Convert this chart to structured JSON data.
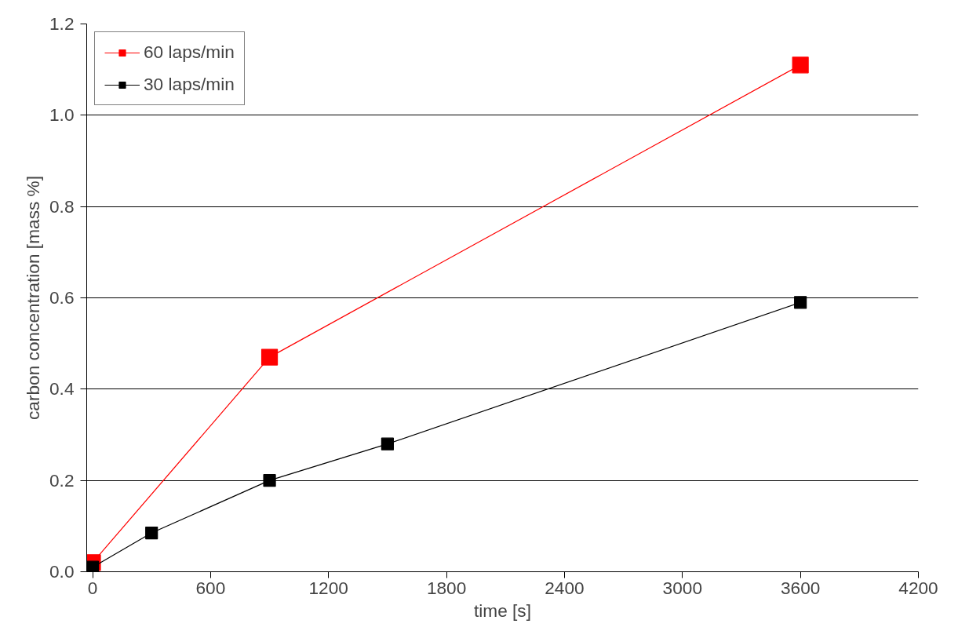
{
  "chart_data": {
    "type": "line",
    "xlabel": "time [s]",
    "ylabel": "carbon concentration [mass %]",
    "xlim": [
      -30,
      4200
    ],
    "xticks": [
      0,
      600,
      1200,
      1800,
      2400,
      3000,
      3600,
      4200
    ],
    "ylim": [
      0,
      1.2
    ],
    "yticks": [
      {
        "value": 0,
        "label": "0.0"
      },
      {
        "value": 0.2,
        "label": "0.2"
      },
      {
        "value": 0.4,
        "label": "0.4"
      },
      {
        "value": 0.6,
        "label": "0.6"
      },
      {
        "value": 0.8,
        "label": "0.8"
      },
      {
        "value": 1,
        "label": "1.0"
      },
      {
        "value": 1.2,
        "label": "1.2"
      }
    ],
    "grid": "y",
    "legend": "top left",
    "marker": "square",
    "line_style": "solid",
    "series": [
      {
        "name": "60 laps/min",
        "color": "#ff0000",
        "x": [
          0,
          900,
          3600
        ],
        "values": [
          0.02,
          0.47,
          1.11
        ]
      },
      {
        "name": "30 laps/min",
        "color": "#000000",
        "x": [
          0,
          300,
          900,
          1500,
          3600
        ],
        "values": [
          0.01,
          0.085,
          0.2,
          0.28,
          0.59
        ]
      }
    ]
  }
}
